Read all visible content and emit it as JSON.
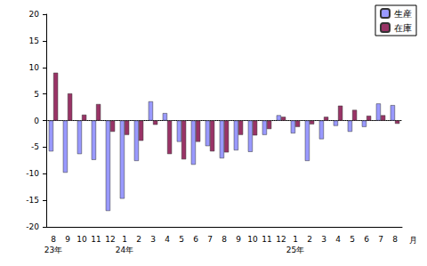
{
  "chart_data": {
    "type": "bar",
    "x_label": "月",
    "categories": [
      "8\n23年",
      "9",
      "10",
      "11",
      "12",
      "1\n24年",
      "2",
      "3",
      "4",
      "5",
      "6",
      "7",
      "8",
      "9",
      "10",
      "11",
      "12",
      "1\n25年",
      "2",
      "3",
      "4",
      "5",
      "6",
      "7",
      "8"
    ],
    "series": [
      {
        "name": "生産",
        "color": "#9999ff",
        "values": [
          -5.8,
          -9.8,
          -6.3,
          -7.4,
          -17.0,
          -14.7,
          -7.6,
          3.6,
          1.4,
          -4.0,
          -8.3,
          -4.8,
          -7.1,
          -5.6,
          -5.9,
          -2.7,
          1.0,
          -2.4,
          -7.6,
          -3.5,
          -1.0,
          -2.1,
          -1.2,
          3.2,
          2.9
        ]
      },
      {
        "name": "在庫",
        "color": "#993366",
        "values": [
          9.0,
          5.1,
          1.1,
          3.1,
          -2.1,
          -2.7,
          -3.8,
          -0.8,
          -6.3,
          -7.3,
          -4.0,
          -5.8,
          -6.0,
          -2.7,
          -2.8,
          -1.6,
          0.7,
          -1.2,
          -0.7,
          0.7,
          2.8,
          2.0,
          0.9,
          1.0,
          -0.6
        ]
      }
    ],
    "ylim": [
      -20,
      20
    ],
    "yticks": [
      -20,
      -15,
      -10,
      -5,
      0,
      5,
      10,
      15,
      20
    ],
    "grid": false,
    "legend": "upper right"
  }
}
